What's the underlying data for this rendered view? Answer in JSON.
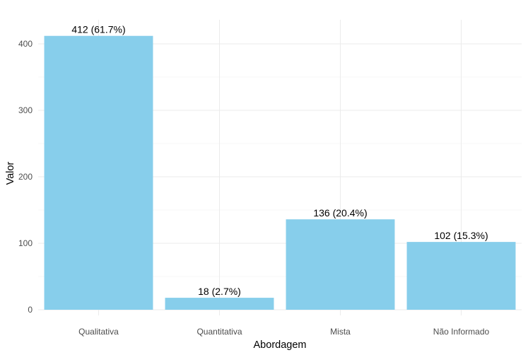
{
  "chart_data": {
    "type": "bar",
    "categories": [
      "Qualitativa",
      "Quantitativa",
      "Mista",
      "Não Informado"
    ],
    "values": [
      412,
      18,
      136,
      102
    ],
    "data_labels": [
      "412 (61.7%)",
      "18 (2.7%)",
      "136 (20.4%)",
      "102 (15.3%)"
    ],
    "title": "",
    "xlabel": "Abordagem",
    "ylabel": "Valor",
    "ylim": [
      0,
      420
    ],
    "yticks": [
      0,
      100,
      200,
      300,
      400
    ],
    "grid": true,
    "legend": "none",
    "bar_color": "#87CEEB"
  }
}
